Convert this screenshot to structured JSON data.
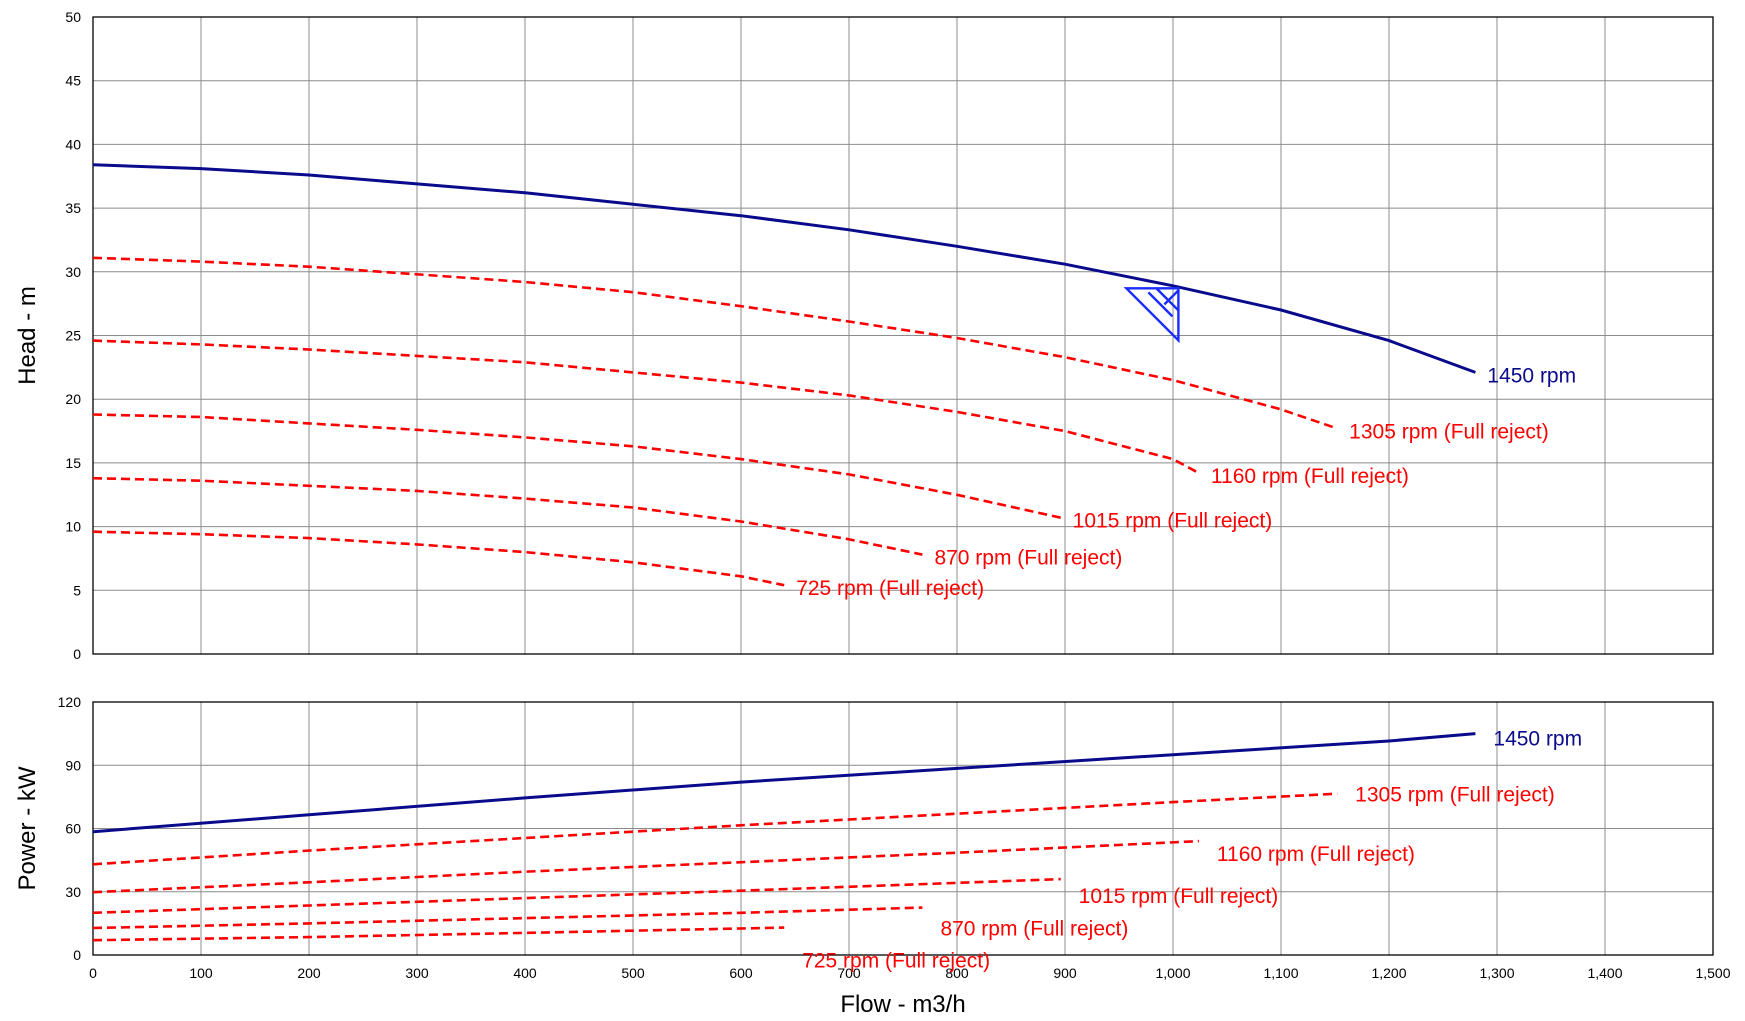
{
  "header_note": "",
  "colors": {
    "full_speed": "#0a0a8c",
    "reduced_speed": "#ff0000",
    "duty_marker": "#1a2cff",
    "grid": "#8c8c8c"
  },
  "chart_data": [
    {
      "id": "head",
      "type": "line",
      "xlabel": "Flow - m3/h",
      "ylabel": "Head - m",
      "xlim": [
        0,
        1500
      ],
      "ylim": [
        0,
        50
      ],
      "xticks": [
        0,
        100,
        200,
        300,
        400,
        500,
        600,
        700,
        800,
        900,
        1000,
        1100,
        1200,
        1300,
        1400,
        1500
      ],
      "yticks": [
        0,
        5,
        10,
        15,
        20,
        25,
        30,
        35,
        40,
        45,
        50
      ],
      "ytick_labels": [
        "0",
        "5",
        "10",
        "15",
        "20",
        "25",
        "30",
        "35",
        "40",
        "45",
        "50"
      ],
      "grid": true,
      "duty_point": {
        "x": 1005,
        "y": 28.7
      },
      "series": [
        {
          "name": "1450 rpm",
          "style": "solid",
          "color": "#0a0a8c",
          "x": [
            0,
            100,
            200,
            300,
            400,
            500,
            600,
            700,
            800,
            900,
            1000,
            1100,
            1200,
            1280
          ],
          "y": [
            38.4,
            38.1,
            37.6,
            36.9,
            36.2,
            35.3,
            34.4,
            33.3,
            32.0,
            30.6,
            28.9,
            27.0,
            24.6,
            22.1
          ]
        },
        {
          "name": "1305 rpm (Full reject)",
          "style": "dashed",
          "color": "#ff0000",
          "x": [
            0,
            100,
            200,
            300,
            400,
            500,
            600,
            700,
            800,
            900,
            1000,
            1100,
            1152
          ],
          "y": [
            31.1,
            30.8,
            30.4,
            29.8,
            29.2,
            28.4,
            27.3,
            26.1,
            24.8,
            23.3,
            21.5,
            19.2,
            17.7
          ]
        },
        {
          "name": "1160 rpm (Full reject)",
          "style": "dashed",
          "color": "#ff0000",
          "x": [
            0,
            100,
            200,
            300,
            400,
            500,
            600,
            700,
            800,
            900,
            1000,
            1024
          ],
          "y": [
            24.6,
            24.3,
            23.9,
            23.4,
            22.9,
            22.1,
            21.3,
            20.3,
            19.0,
            17.5,
            15.3,
            14.2
          ]
        },
        {
          "name": "1015 rpm (Full reject)",
          "style": "dashed",
          "color": "#ff0000",
          "x": [
            0,
            100,
            200,
            300,
            400,
            500,
            600,
            700,
            800,
            896
          ],
          "y": [
            18.8,
            18.6,
            18.1,
            17.6,
            17.0,
            16.3,
            15.3,
            14.1,
            12.5,
            10.7
          ]
        },
        {
          "name": "870 rpm (Full reject)",
          "style": "dashed",
          "color": "#ff0000",
          "x": [
            0,
            100,
            200,
            300,
            400,
            500,
            600,
            700,
            768
          ],
          "y": [
            13.8,
            13.6,
            13.2,
            12.8,
            12.2,
            11.5,
            10.4,
            9.0,
            7.8
          ]
        },
        {
          "name": "725 rpm (Full reject)",
          "style": "dashed",
          "color": "#ff0000",
          "x": [
            0,
            100,
            200,
            300,
            400,
            500,
            600,
            640
          ],
          "y": [
            9.6,
            9.4,
            9.1,
            8.6,
            8.0,
            7.2,
            6.1,
            5.4
          ]
        }
      ]
    },
    {
      "id": "power",
      "type": "line",
      "xlabel": "Flow - m3/h",
      "ylabel": "Power - kW",
      "xlim": [
        0,
        1500
      ],
      "ylim": [
        0,
        120
      ],
      "xticks": [
        0,
        100,
        200,
        300,
        400,
        500,
        600,
        700,
        800,
        900,
        1000,
        1100,
        1200,
        1300,
        1400,
        1500
      ],
      "xtick_labels": [
        "0",
        "100",
        "200",
        "300",
        "400",
        "500",
        "600",
        "700",
        "800",
        "900",
        "1,000",
        "1,100",
        "1,200",
        "1,300",
        "1,400",
        "1,500"
      ],
      "yticks": [
        0,
        30,
        60,
        90,
        120
      ],
      "ytick_labels": [
        "0",
        "30",
        "60",
        "90",
        "120"
      ],
      "grid": true,
      "series": [
        {
          "name": "1450 rpm",
          "style": "solid",
          "color": "#0a0a8c",
          "x": [
            0,
            200,
            400,
            600,
            800,
            1000,
            1200,
            1280
          ],
          "y": [
            58.5,
            66.5,
            74.5,
            82.0,
            88.5,
            95.0,
            101.5,
            105.0
          ]
        },
        {
          "name": "1305 rpm (Full reject)",
          "style": "dashed",
          "color": "#ff0000",
          "x": [
            0,
            200,
            400,
            600,
            800,
            1000,
            1152
          ],
          "y": [
            43.0,
            49.5,
            55.5,
            61.5,
            67.0,
            72.5,
            76.5
          ]
        },
        {
          "name": "1160 rpm (Full reject)",
          "style": "dashed",
          "color": "#ff0000",
          "x": [
            0,
            200,
            400,
            600,
            800,
            1024
          ],
          "y": [
            29.8,
            34.5,
            39.5,
            44.0,
            48.5,
            54.0
          ]
        },
        {
          "name": "1015 rpm (Full reject)",
          "style": "dashed",
          "color": "#ff0000",
          "x": [
            0,
            200,
            400,
            600,
            896
          ],
          "y": [
            20.0,
            23.5,
            27.0,
            30.5,
            36.0
          ]
        },
        {
          "name": "870 rpm (Full reject)",
          "style": "dashed",
          "color": "#ff0000",
          "x": [
            0,
            200,
            400,
            600,
            768
          ],
          "y": [
            12.8,
            15.0,
            17.5,
            20.0,
            22.5
          ]
        },
        {
          "name": "725 rpm (Full reject)",
          "style": "dashed",
          "color": "#ff0000",
          "x": [
            0,
            200,
            400,
            640
          ],
          "y": [
            7.0,
            8.5,
            10.5,
            13.0
          ]
        }
      ]
    }
  ]
}
